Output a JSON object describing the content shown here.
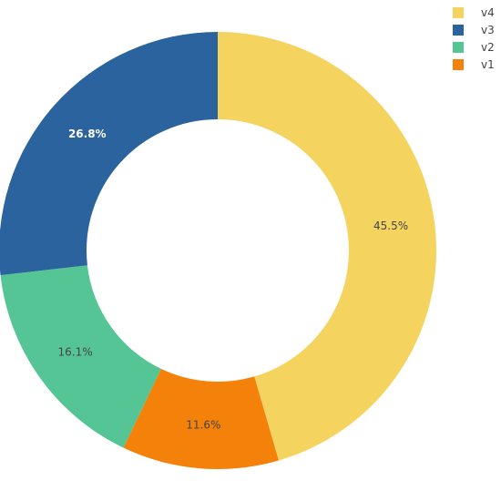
{
  "chart_data": {
    "type": "pie",
    "hole": 0.6,
    "rotation_start": "12 o'clock",
    "direction": "clockwise",
    "slices": [
      {
        "label": "v4",
        "value": 45.5,
        "text": "45.5%",
        "color": "#f4d35e",
        "text_color": "#444444"
      },
      {
        "label": "v1",
        "value": 11.6,
        "text": "11.6%",
        "color": "#f48109",
        "text_color": "#444444"
      },
      {
        "label": "v2",
        "value": 16.1,
        "text": "16.1%",
        "color": "#55c595",
        "text_color": "#444444"
      },
      {
        "label": "v3",
        "value": 26.8,
        "text": "26.8%",
        "color": "#2a639d",
        "text_color": "#ffffff"
      }
    ],
    "legend": {
      "placement": "top-right",
      "order": [
        "v4",
        "v3",
        "v2",
        "v1"
      ]
    }
  }
}
